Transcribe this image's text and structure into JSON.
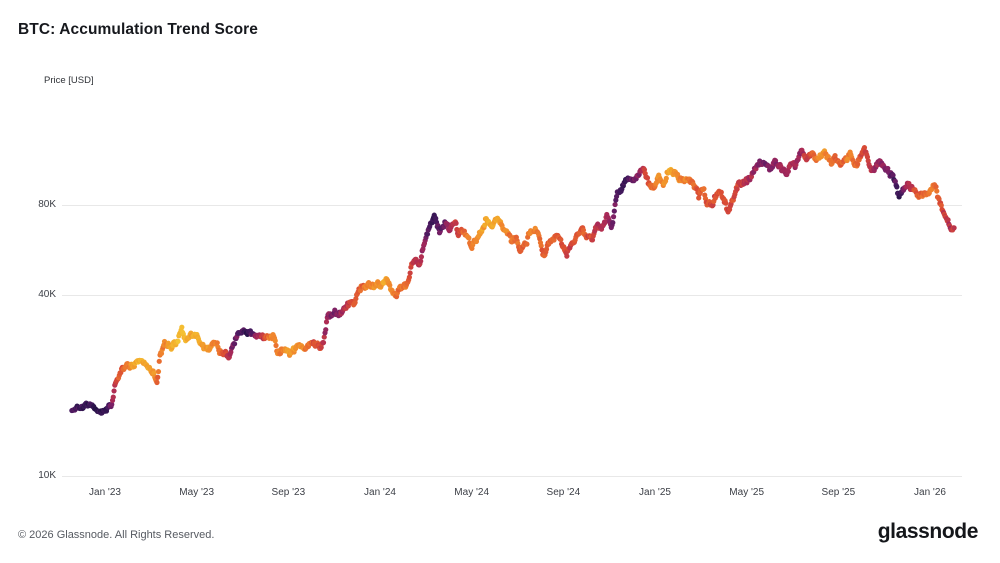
{
  "page": {
    "title": "BTC: Accumulation Trend Score",
    "footer_copyright": "© 2026 Glassnode. All Rights Reserved.",
    "brand_wordmark": "glassnode"
  },
  "chart_data": {
    "type": "scatter",
    "title": "BTC: Accumulation Trend Score",
    "ylabel": "Price [USD]",
    "y_scale": "log",
    "grid": "horizontal-only",
    "background": "#ffffff",
    "gridline_color": "#e8e8e8",
    "y_ticks": [
      {
        "value": 80000,
        "label": "80K"
      },
      {
        "value": 40000,
        "label": "40K"
      },
      {
        "value": 10000,
        "label": "10K"
      }
    ],
    "x_ticks": [
      {
        "year": 2023.0,
        "label": "Jan '23"
      },
      {
        "year": 2023.3333,
        "label": "May '23"
      },
      {
        "year": 2023.6667,
        "label": "Sep '23"
      },
      {
        "year": 2024.0,
        "label": "Jan '24"
      },
      {
        "year": 2024.3333,
        "label": "May '24"
      },
      {
        "year": 2024.6667,
        "label": "Sep '24"
      },
      {
        "year": 2025.0,
        "label": "Jan '25"
      },
      {
        "year": 2025.3333,
        "label": "May '25"
      },
      {
        "year": 2025.6667,
        "label": "Sep '25"
      },
      {
        "year": 2026.0,
        "label": "Jan '26"
      }
    ],
    "score_domain": [
      0,
      1
    ],
    "colormap_stops": [
      [
        0.0,
        "#f5d13a"
      ],
      [
        0.18,
        "#f3ae2c"
      ],
      [
        0.36,
        "#ef7e2e"
      ],
      [
        0.52,
        "#d94a35"
      ],
      [
        0.66,
        "#aa2a57"
      ],
      [
        0.78,
        "#7a2066"
      ],
      [
        0.88,
        "#471a60"
      ],
      [
        1.0,
        "#221244"
      ]
    ],
    "points_keyframes": [
      [
        "2022-11-18",
        16300,
        0.88
      ],
      [
        "2022-11-26",
        16550,
        0.9
      ],
      [
        "2022-12-04",
        17050,
        0.93
      ],
      [
        "2022-12-12",
        17150,
        0.95
      ],
      [
        "2022-12-20",
        16800,
        0.95
      ],
      [
        "2022-12-28",
        16600,
        0.94
      ],
      [
        "2023-01-04",
        16850,
        0.9
      ],
      [
        "2023-01-10",
        17400,
        0.78
      ],
      [
        "2023-01-14",
        19900,
        0.6
      ],
      [
        "2023-01-18",
        20900,
        0.5
      ],
      [
        "2023-01-24",
        22900,
        0.45
      ],
      [
        "2023-01-31",
        23100,
        0.36
      ],
      [
        "2023-02-07",
        23250,
        0.25
      ],
      [
        "2023-02-14",
        24400,
        0.16
      ],
      [
        "2023-02-21",
        24500,
        0.18
      ],
      [
        "2023-02-28",
        23200,
        0.22
      ],
      [
        "2023-03-07",
        22200,
        0.3
      ],
      [
        "2023-03-11",
        20300,
        0.45
      ],
      [
        "2023-03-15",
        24900,
        0.4
      ],
      [
        "2023-03-21",
        27900,
        0.3
      ],
      [
        "2023-03-29",
        27250,
        0.2
      ],
      [
        "2023-04-06",
        28050,
        0.13
      ],
      [
        "2023-04-13",
        30300,
        0.1
      ],
      [
        "2023-04-20",
        28250,
        0.17
      ],
      [
        "2023-04-27",
        29450,
        0.2
      ],
      [
        "2023-05-05",
        28900,
        0.17
      ],
      [
        "2023-05-12",
        26800,
        0.28
      ],
      [
        "2023-05-19",
        27050,
        0.26
      ],
      [
        "2023-05-27",
        27650,
        0.3
      ],
      [
        "2023-06-04",
        25750,
        0.42
      ],
      [
        "2023-06-10",
        25850,
        0.5
      ],
      [
        "2023-06-15",
        25150,
        0.62
      ],
      [
        "2023-06-21",
        28350,
        0.78
      ],
      [
        "2023-06-27",
        30250,
        0.86
      ],
      [
        "2023-07-04",
        30550,
        0.91
      ],
      [
        "2023-07-11",
        30350,
        0.9
      ],
      [
        "2023-07-18",
        29850,
        0.8
      ],
      [
        "2023-07-25",
        29250,
        0.66
      ],
      [
        "2023-08-02",
        29150,
        0.5
      ],
      [
        "2023-08-09",
        29550,
        0.36
      ],
      [
        "2023-08-14",
        29300,
        0.3
      ],
      [
        "2023-08-18",
        26150,
        0.38
      ],
      [
        "2023-08-25",
        26050,
        0.33
      ],
      [
        "2023-09-01",
        25850,
        0.28
      ],
      [
        "2023-09-08",
        25900,
        0.25
      ],
      [
        "2023-09-15",
        26550,
        0.28
      ],
      [
        "2023-09-22",
        26600,
        0.33
      ],
      [
        "2023-09-29",
        26900,
        0.42
      ],
      [
        "2023-10-06",
        27550,
        0.5
      ],
      [
        "2023-10-13",
        26800,
        0.55
      ],
      [
        "2023-10-18",
        28400,
        0.62
      ],
      [
        "2023-10-24",
        33950,
        0.74
      ],
      [
        "2023-10-31",
        34600,
        0.8
      ],
      [
        "2023-11-07",
        35400,
        0.76
      ],
      [
        "2023-11-14",
        36450,
        0.66
      ],
      [
        "2023-11-21",
        37350,
        0.58
      ],
      [
        "2023-11-28",
        37800,
        0.52
      ],
      [
        "2023-12-05",
        41950,
        0.48
      ],
      [
        "2023-12-09",
        43950,
        0.44
      ],
      [
        "2023-12-14",
        43000,
        0.37
      ],
      [
        "2023-12-20",
        42650,
        0.31
      ],
      [
        "2023-12-27",
        43450,
        0.27
      ],
      [
        "2024-01-03",
        43200,
        0.24
      ],
      [
        "2024-01-09",
        46150,
        0.2
      ],
      [
        "2024-01-15",
        42600,
        0.3
      ],
      [
        "2024-01-23",
        39550,
        0.42
      ],
      [
        "2024-01-30",
        43300,
        0.4
      ],
      [
        "2024-02-06",
        43100,
        0.44
      ],
      [
        "2024-02-12",
        49950,
        0.52
      ],
      [
        "2024-02-16",
        52050,
        0.58
      ],
      [
        "2024-02-23",
        51050,
        0.64
      ],
      [
        "2024-02-29",
        61450,
        0.72
      ],
      [
        "2024-03-06",
        66100,
        0.8
      ],
      [
        "2024-03-13",
        73100,
        0.9
      ],
      [
        "2024-03-17",
        67250,
        0.86
      ],
      [
        "2024-03-21",
        65500,
        0.84
      ],
      [
        "2024-03-27",
        70050,
        0.78
      ],
      [
        "2024-04-03",
        66850,
        0.7
      ],
      [
        "2024-04-09",
        71100,
        0.6
      ],
      [
        "2024-04-14",
        64000,
        0.52
      ],
      [
        "2024-04-21",
        64950,
        0.42
      ],
      [
        "2024-04-28",
        63450,
        0.38
      ],
      [
        "2024-05-01",
        58250,
        0.44
      ],
      [
        "2024-05-08",
        61200,
        0.34
      ],
      [
        "2024-05-15",
        66250,
        0.24
      ],
      [
        "2024-05-21",
        71400,
        0.16
      ],
      [
        "2024-05-28",
        68350,
        0.2
      ],
      [
        "2024-06-05",
        71100,
        0.22
      ],
      [
        "2024-06-12",
        67300,
        0.3
      ],
      [
        "2024-06-18",
        65150,
        0.34
      ],
      [
        "2024-06-24",
        60300,
        0.4
      ],
      [
        "2024-07-01",
        62900,
        0.42
      ],
      [
        "2024-07-05",
        56600,
        0.46
      ],
      [
        "2024-07-12",
        57900,
        0.44
      ],
      [
        "2024-07-19",
        66700,
        0.37
      ],
      [
        "2024-07-27",
        67900,
        0.3
      ],
      [
        "2024-08-01",
        62300,
        0.4
      ],
      [
        "2024-08-05",
        54050,
        0.5
      ],
      [
        "2024-08-11",
        58700,
        0.46
      ],
      [
        "2024-08-18",
        60250,
        0.42
      ],
      [
        "2024-08-24",
        64100,
        0.44
      ],
      [
        "2024-08-30",
        59150,
        0.5
      ],
      [
        "2024-09-06",
        53950,
        0.56
      ],
      [
        "2024-09-13",
        60550,
        0.5
      ],
      [
        "2024-09-20",
        63200,
        0.46
      ],
      [
        "2024-09-27",
        65750,
        0.42
      ],
      [
        "2024-10-04",
        62100,
        0.48
      ],
      [
        "2024-10-10",
        60300,
        0.54
      ],
      [
        "2024-10-16",
        67600,
        0.58
      ],
      [
        "2024-10-22",
        67400,
        0.62
      ],
      [
        "2024-10-29",
        72700,
        0.68
      ],
      [
        "2024-11-05",
        69350,
        0.74
      ],
      [
        "2024-11-11",
        88700,
        0.84
      ],
      [
        "2024-11-18",
        90450,
        0.88
      ],
      [
        "2024-11-23",
        98000,
        0.9
      ],
      [
        "2024-11-30",
        96450,
        0.86
      ],
      [
        "2024-12-06",
        101150,
        0.78
      ],
      [
        "2024-12-12",
        101400,
        0.68
      ],
      [
        "2024-12-17",
        106100,
        0.58
      ],
      [
        "2024-12-23",
        94300,
        0.48
      ],
      [
        "2024-12-30",
        93700,
        0.4
      ],
      [
        "2025-01-06",
        102100,
        0.3
      ],
      [
        "2025-01-13",
        94550,
        0.33
      ],
      [
        "2025-01-20",
        106150,
        0.22
      ],
      [
        "2025-01-27",
        102100,
        0.26
      ],
      [
        "2025-02-03",
        97750,
        0.32
      ],
      [
        "2025-02-10",
        97450,
        0.3
      ],
      [
        "2025-02-17",
        95650,
        0.35
      ],
      [
        "2025-02-25",
        88650,
        0.45
      ],
      [
        "2025-02-28",
        84350,
        0.5
      ],
      [
        "2025-03-06",
        90600,
        0.46
      ],
      [
        "2025-03-11",
        80750,
        0.55
      ],
      [
        "2025-03-18",
        82550,
        0.52
      ],
      [
        "2025-03-25",
        87500,
        0.47
      ],
      [
        "2025-04-01",
        85150,
        0.5
      ],
      [
        "2025-04-08",
        76300,
        0.58
      ],
      [
        "2025-04-15",
        83650,
        0.53
      ],
      [
        "2025-04-22",
        93400,
        0.57
      ],
      [
        "2025-04-29",
        94250,
        0.62
      ],
      [
        "2025-05-07",
        97000,
        0.66
      ],
      [
        "2025-05-13",
        104150,
        0.7
      ],
      [
        "2025-05-21",
        109650,
        0.75
      ],
      [
        "2025-05-26",
        109450,
        0.78
      ],
      [
        "2025-06-02",
        105650,
        0.74
      ],
      [
        "2025-06-09",
        110250,
        0.7
      ],
      [
        "2025-06-16",
        106800,
        0.67
      ],
      [
        "2025-06-22",
        100950,
        0.69
      ],
      [
        "2025-06-29",
        107300,
        0.64
      ],
      [
        "2025-07-07",
        108950,
        0.68
      ],
      [
        "2025-07-14",
        119900,
        0.74
      ],
      [
        "2025-07-21",
        117450,
        0.6
      ],
      [
        "2025-07-28",
        119250,
        0.47
      ],
      [
        "2025-08-04",
        114200,
        0.36
      ],
      [
        "2025-08-09",
        116700,
        0.3
      ],
      [
        "2025-08-14",
        123350,
        0.3
      ],
      [
        "2025-08-21",
        112400,
        0.38
      ],
      [
        "2025-08-28",
        112550,
        0.42
      ],
      [
        "2025-09-04",
        110900,
        0.46
      ],
      [
        "2025-09-11",
        115550,
        0.4
      ],
      [
        "2025-09-18",
        117050,
        0.36
      ],
      [
        "2025-09-25",
        109700,
        0.45
      ],
      [
        "2025-10-01",
        117350,
        0.48
      ],
      [
        "2025-10-06",
        125250,
        0.5
      ],
      [
        "2025-10-11",
        111550,
        0.58
      ],
      [
        "2025-10-17",
        105450,
        0.64
      ],
      [
        "2025-10-24",
        110100,
        0.68
      ],
      [
        "2025-10-31",
        109400,
        0.72
      ],
      [
        "2025-11-06",
        103550,
        0.78
      ],
      [
        "2025-11-13",
        98950,
        0.84
      ],
      [
        "2025-11-21",
        84650,
        0.9
      ],
      [
        "2025-11-27",
        90750,
        0.83
      ],
      [
        "2025-12-03",
        93400,
        0.7
      ],
      [
        "2025-12-09",
        91700,
        0.56
      ],
      [
        "2025-12-15",
        86700,
        0.47
      ],
      [
        "2025-12-22",
        88100,
        0.4
      ],
      [
        "2025-12-29",
        88700,
        0.38
      ],
      [
        "2026-01-05",
        91500,
        0.36
      ],
      [
        "2026-01-09",
        89900,
        0.42
      ],
      [
        "2026-01-14",
        82100,
        0.5
      ],
      [
        "2026-01-19",
        76400,
        0.55
      ],
      [
        "2026-01-24",
        70200,
        0.6
      ],
      [
        "2026-01-29",
        65500,
        0.62
      ],
      [
        "2026-02-02",
        67500,
        0.58
      ]
    ]
  }
}
